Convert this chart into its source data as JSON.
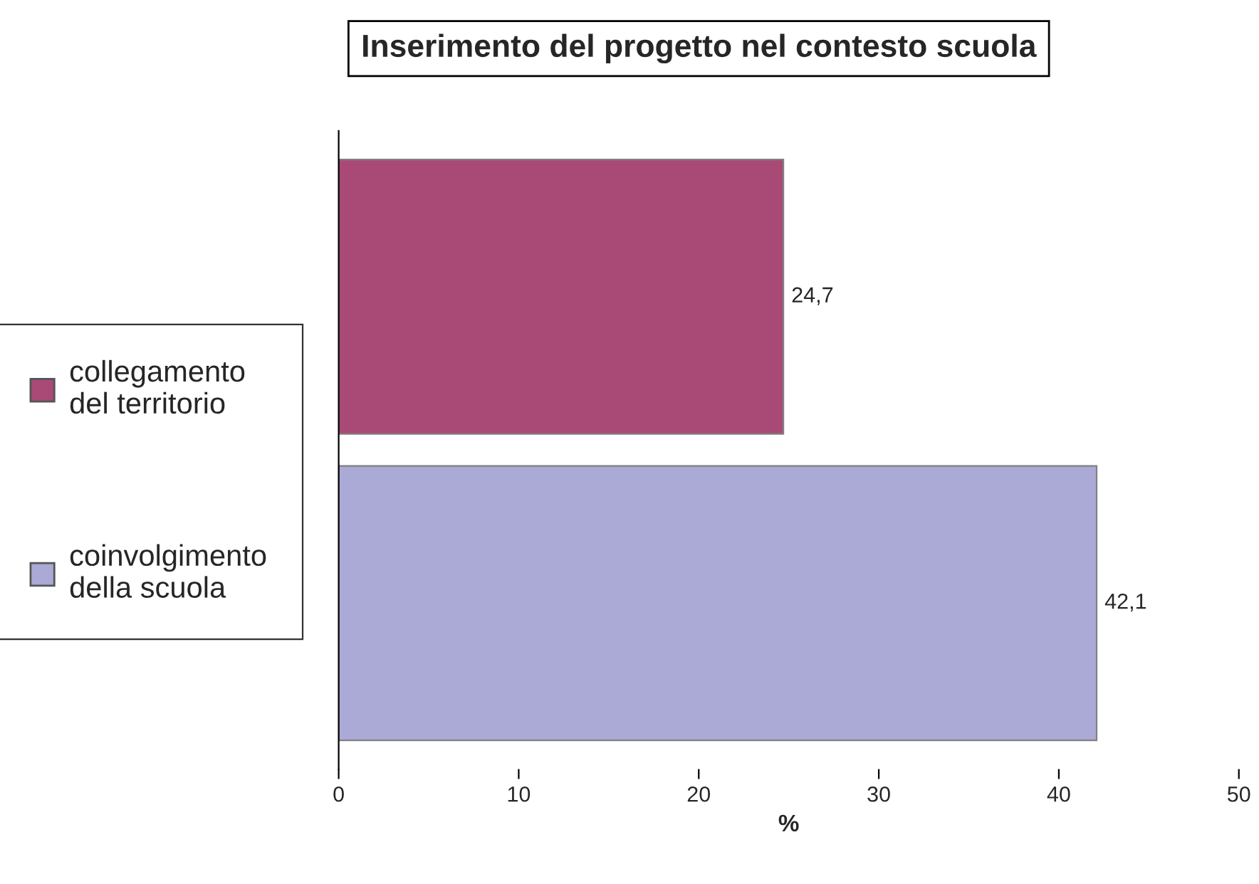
{
  "chart_data": {
    "type": "bar",
    "orientation": "horizontal",
    "title": "Inserimento del progetto nel contesto scuola",
    "xlabel": "%",
    "categories": [
      null
    ],
    "series": [
      {
        "name": "collegamento\ndel territorio",
        "color": "#a94a76",
        "values": [
          24.7
        ],
        "value_labels": [
          "24,7"
        ]
      },
      {
        "name": "coinvolgimento\ndella scuola",
        "color": "#abaad6",
        "values": [
          42.1
        ],
        "value_labels": [
          "42,1"
        ]
      }
    ],
    "xlim": [
      0,
      50
    ],
    "xticks": [
      0,
      10,
      20,
      30,
      40,
      50
    ],
    "grid": false,
    "legend": "left"
  }
}
